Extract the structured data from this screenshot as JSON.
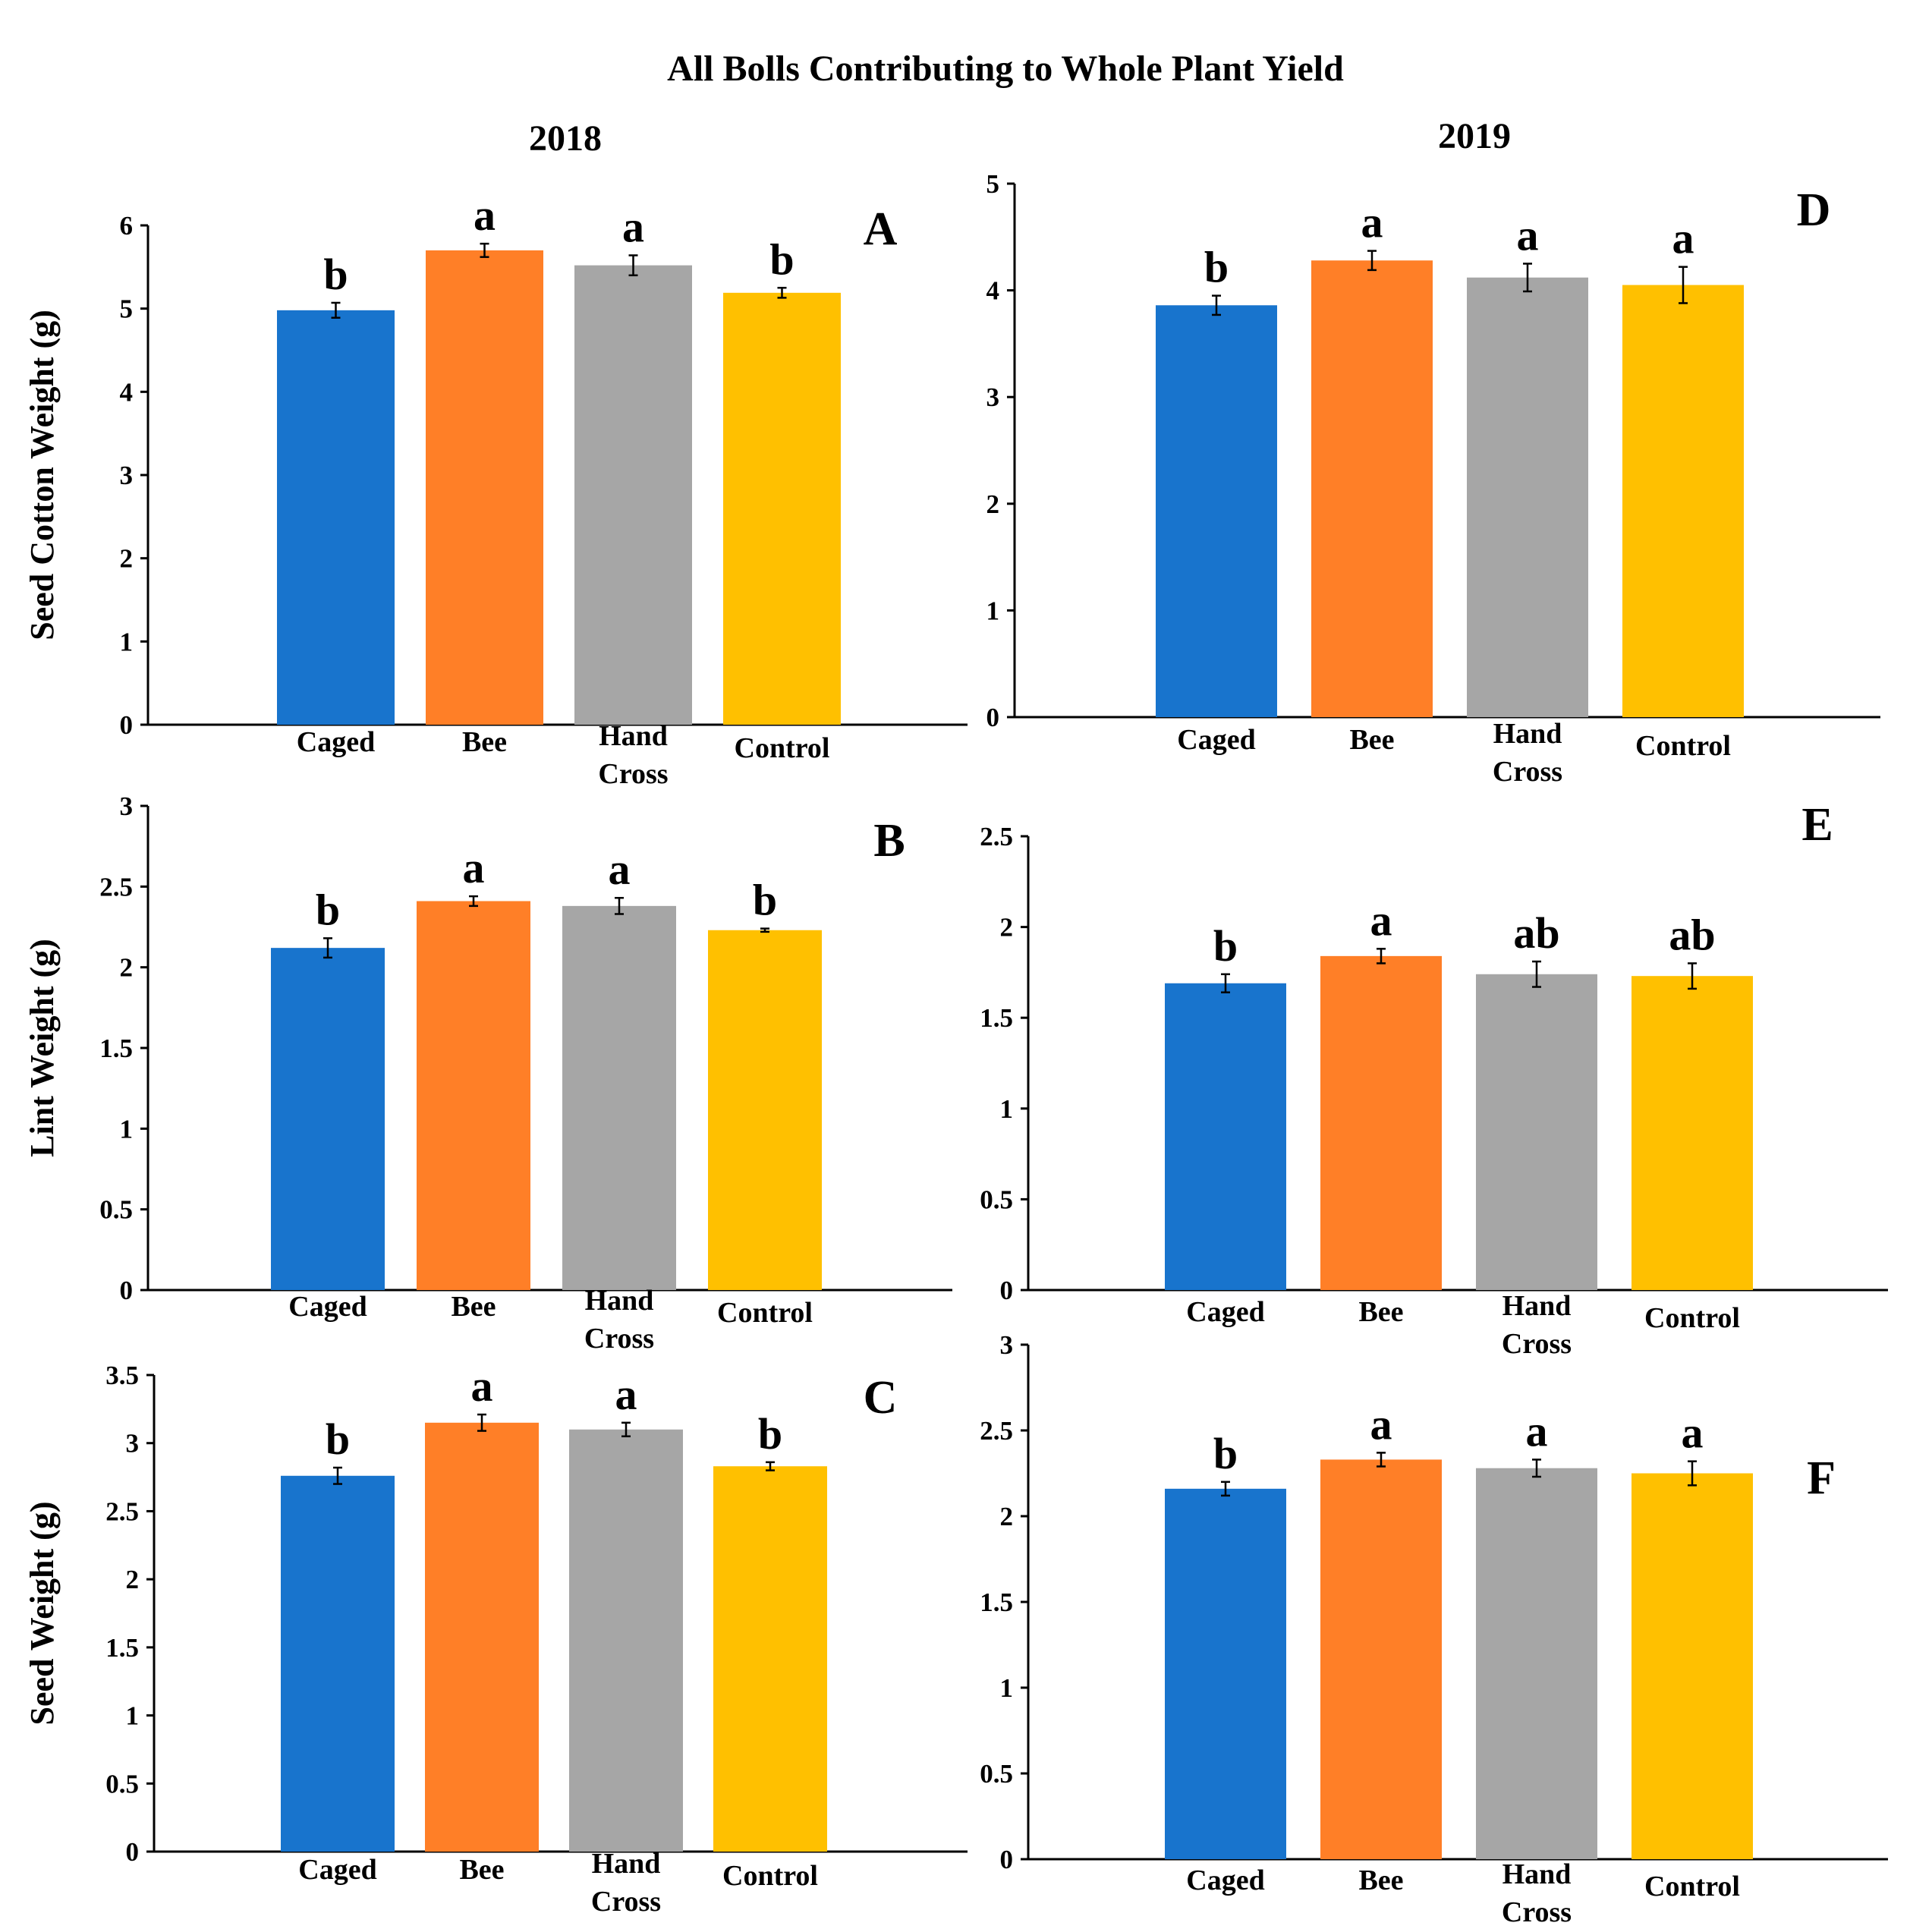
{
  "figure_title": "All Bolls Contributing to Whole Plant Yield",
  "columns": [
    "2018",
    "2019"
  ],
  "colors": {
    "Caged": "#1874CD",
    "Bee": "#FF7F27",
    "Hand Cross": "#A6A6A6",
    "Control": "#FFC000"
  },
  "chart_data": [
    {
      "panel": "A",
      "year": "2018",
      "type": "bar",
      "ylabel": "Seed Cotton Weight (g)",
      "categories": [
        "Caged",
        "Bee",
        "Hand Cross",
        "Control"
      ],
      "category_lines": [
        [
          "Caged"
        ],
        [
          "Bee"
        ],
        [
          "Hand",
          "Cross"
        ],
        [
          "Control"
        ]
      ],
      "values": [
        4.98,
        5.7,
        5.52,
        5.19
      ],
      "errors": [
        0.09,
        0.08,
        0.12,
        0.06
      ],
      "significance": [
        "b",
        "a",
        "a",
        "b"
      ],
      "ylim": [
        0,
        6
      ],
      "yticks": [
        0,
        1,
        2,
        3,
        4,
        5,
        6
      ],
      "ytick_labels": [
        "0",
        "1",
        "2",
        "3",
        "4",
        "5",
        "6"
      ]
    },
    {
      "panel": "B",
      "year": "2018",
      "type": "bar",
      "ylabel": "Lint Weight (g)",
      "categories": [
        "Caged",
        "Bee",
        "Hand Cross",
        "Control"
      ],
      "category_lines": [
        [
          "Caged"
        ],
        [
          "Bee"
        ],
        [
          "Hand",
          "Cross"
        ],
        [
          "Control"
        ]
      ],
      "values": [
        2.12,
        2.41,
        2.38,
        2.23
      ],
      "errors": [
        0.06,
        0.03,
        0.05,
        0.01
      ],
      "significance": [
        "b",
        "a",
        "a",
        "b"
      ],
      "ylim": [
        0,
        3
      ],
      "yticks": [
        0,
        0.5,
        1,
        1.5,
        2,
        2.5,
        3
      ],
      "ytick_labels": [
        "0",
        "0.5",
        "1",
        "1.5",
        "2",
        "2.5",
        "3"
      ]
    },
    {
      "panel": "C",
      "year": "2018",
      "type": "bar",
      "ylabel": "Seed Weight (g)",
      "categories": [
        "Caged",
        "Bee",
        "Hand Cross",
        "Control"
      ],
      "category_lines": [
        [
          "Caged"
        ],
        [
          "Bee"
        ],
        [
          "Hand",
          "Cross"
        ],
        [
          "Control"
        ]
      ],
      "values": [
        2.76,
        3.15,
        3.1,
        2.83
      ],
      "errors": [
        0.06,
        0.06,
        0.05,
        0.03
      ],
      "significance": [
        "b",
        "a",
        "a",
        "b"
      ],
      "ylim": [
        0,
        3.5
      ],
      "yticks": [
        0,
        0.5,
        1,
        1.5,
        2,
        2.5,
        3,
        3.5
      ],
      "ytick_labels": [
        "0",
        "0.5",
        "1",
        "1.5",
        "2",
        "2.5",
        "3",
        "3.5"
      ]
    },
    {
      "panel": "D",
      "year": "2019",
      "type": "bar",
      "ylabel": "",
      "categories": [
        "Caged",
        "Bee",
        "Hand Cross",
        "Control"
      ],
      "category_lines": [
        [
          "Caged"
        ],
        [
          "Bee"
        ],
        [
          "Hand",
          "Cross"
        ],
        [
          "Control"
        ]
      ],
      "values": [
        3.86,
        4.28,
        4.12,
        4.05
      ],
      "errors": [
        0.09,
        0.09,
        0.13,
        0.17
      ],
      "significance": [
        "b",
        "a",
        "a",
        "a"
      ],
      "ylim": [
        0,
        5
      ],
      "yticks": [
        0,
        1,
        2,
        3,
        4,
        5
      ],
      "ytick_labels": [
        "0",
        "1",
        "2",
        "3",
        "4",
        "5"
      ]
    },
    {
      "panel": "E",
      "year": "2019",
      "type": "bar",
      "ylabel": "",
      "categories": [
        "Caged",
        "Bee",
        "Hand Cross",
        "Control"
      ],
      "category_lines": [
        [
          "Caged"
        ],
        [
          "Bee"
        ],
        [
          "Hand",
          "Cross"
        ],
        [
          "Control"
        ]
      ],
      "values": [
        1.69,
        1.84,
        1.74,
        1.73
      ],
      "errors": [
        0.05,
        0.04,
        0.07,
        0.07
      ],
      "significance": [
        "b",
        "a",
        "ab",
        "ab"
      ],
      "ylim": [
        0,
        2.5
      ],
      "yticks": [
        0,
        0.5,
        1,
        1.5,
        2,
        2.5
      ],
      "ytick_labels": [
        "0",
        "0.5",
        "1",
        "1.5",
        "2",
        "2.5"
      ]
    },
    {
      "panel": "F",
      "year": "2019",
      "type": "bar",
      "ylabel": "",
      "categories": [
        "Caged",
        "Bee",
        "Hand Cross",
        "Control"
      ],
      "category_lines": [
        [
          "Caged"
        ],
        [
          "Bee"
        ],
        [
          "Hand",
          "Cross"
        ],
        [
          "Control"
        ]
      ],
      "values": [
        2.16,
        2.33,
        2.28,
        2.25
      ],
      "errors": [
        0.04,
        0.04,
        0.05,
        0.07
      ],
      "significance": [
        "b",
        "a",
        "a",
        "a"
      ],
      "ylim": [
        0,
        3
      ],
      "yticks": [
        0,
        0.5,
        1,
        1.5,
        2,
        2.5,
        3
      ],
      "ytick_labels": [
        "0",
        "0.5",
        "1",
        "1.5",
        "2",
        "2.5",
        "3"
      ]
    }
  ]
}
